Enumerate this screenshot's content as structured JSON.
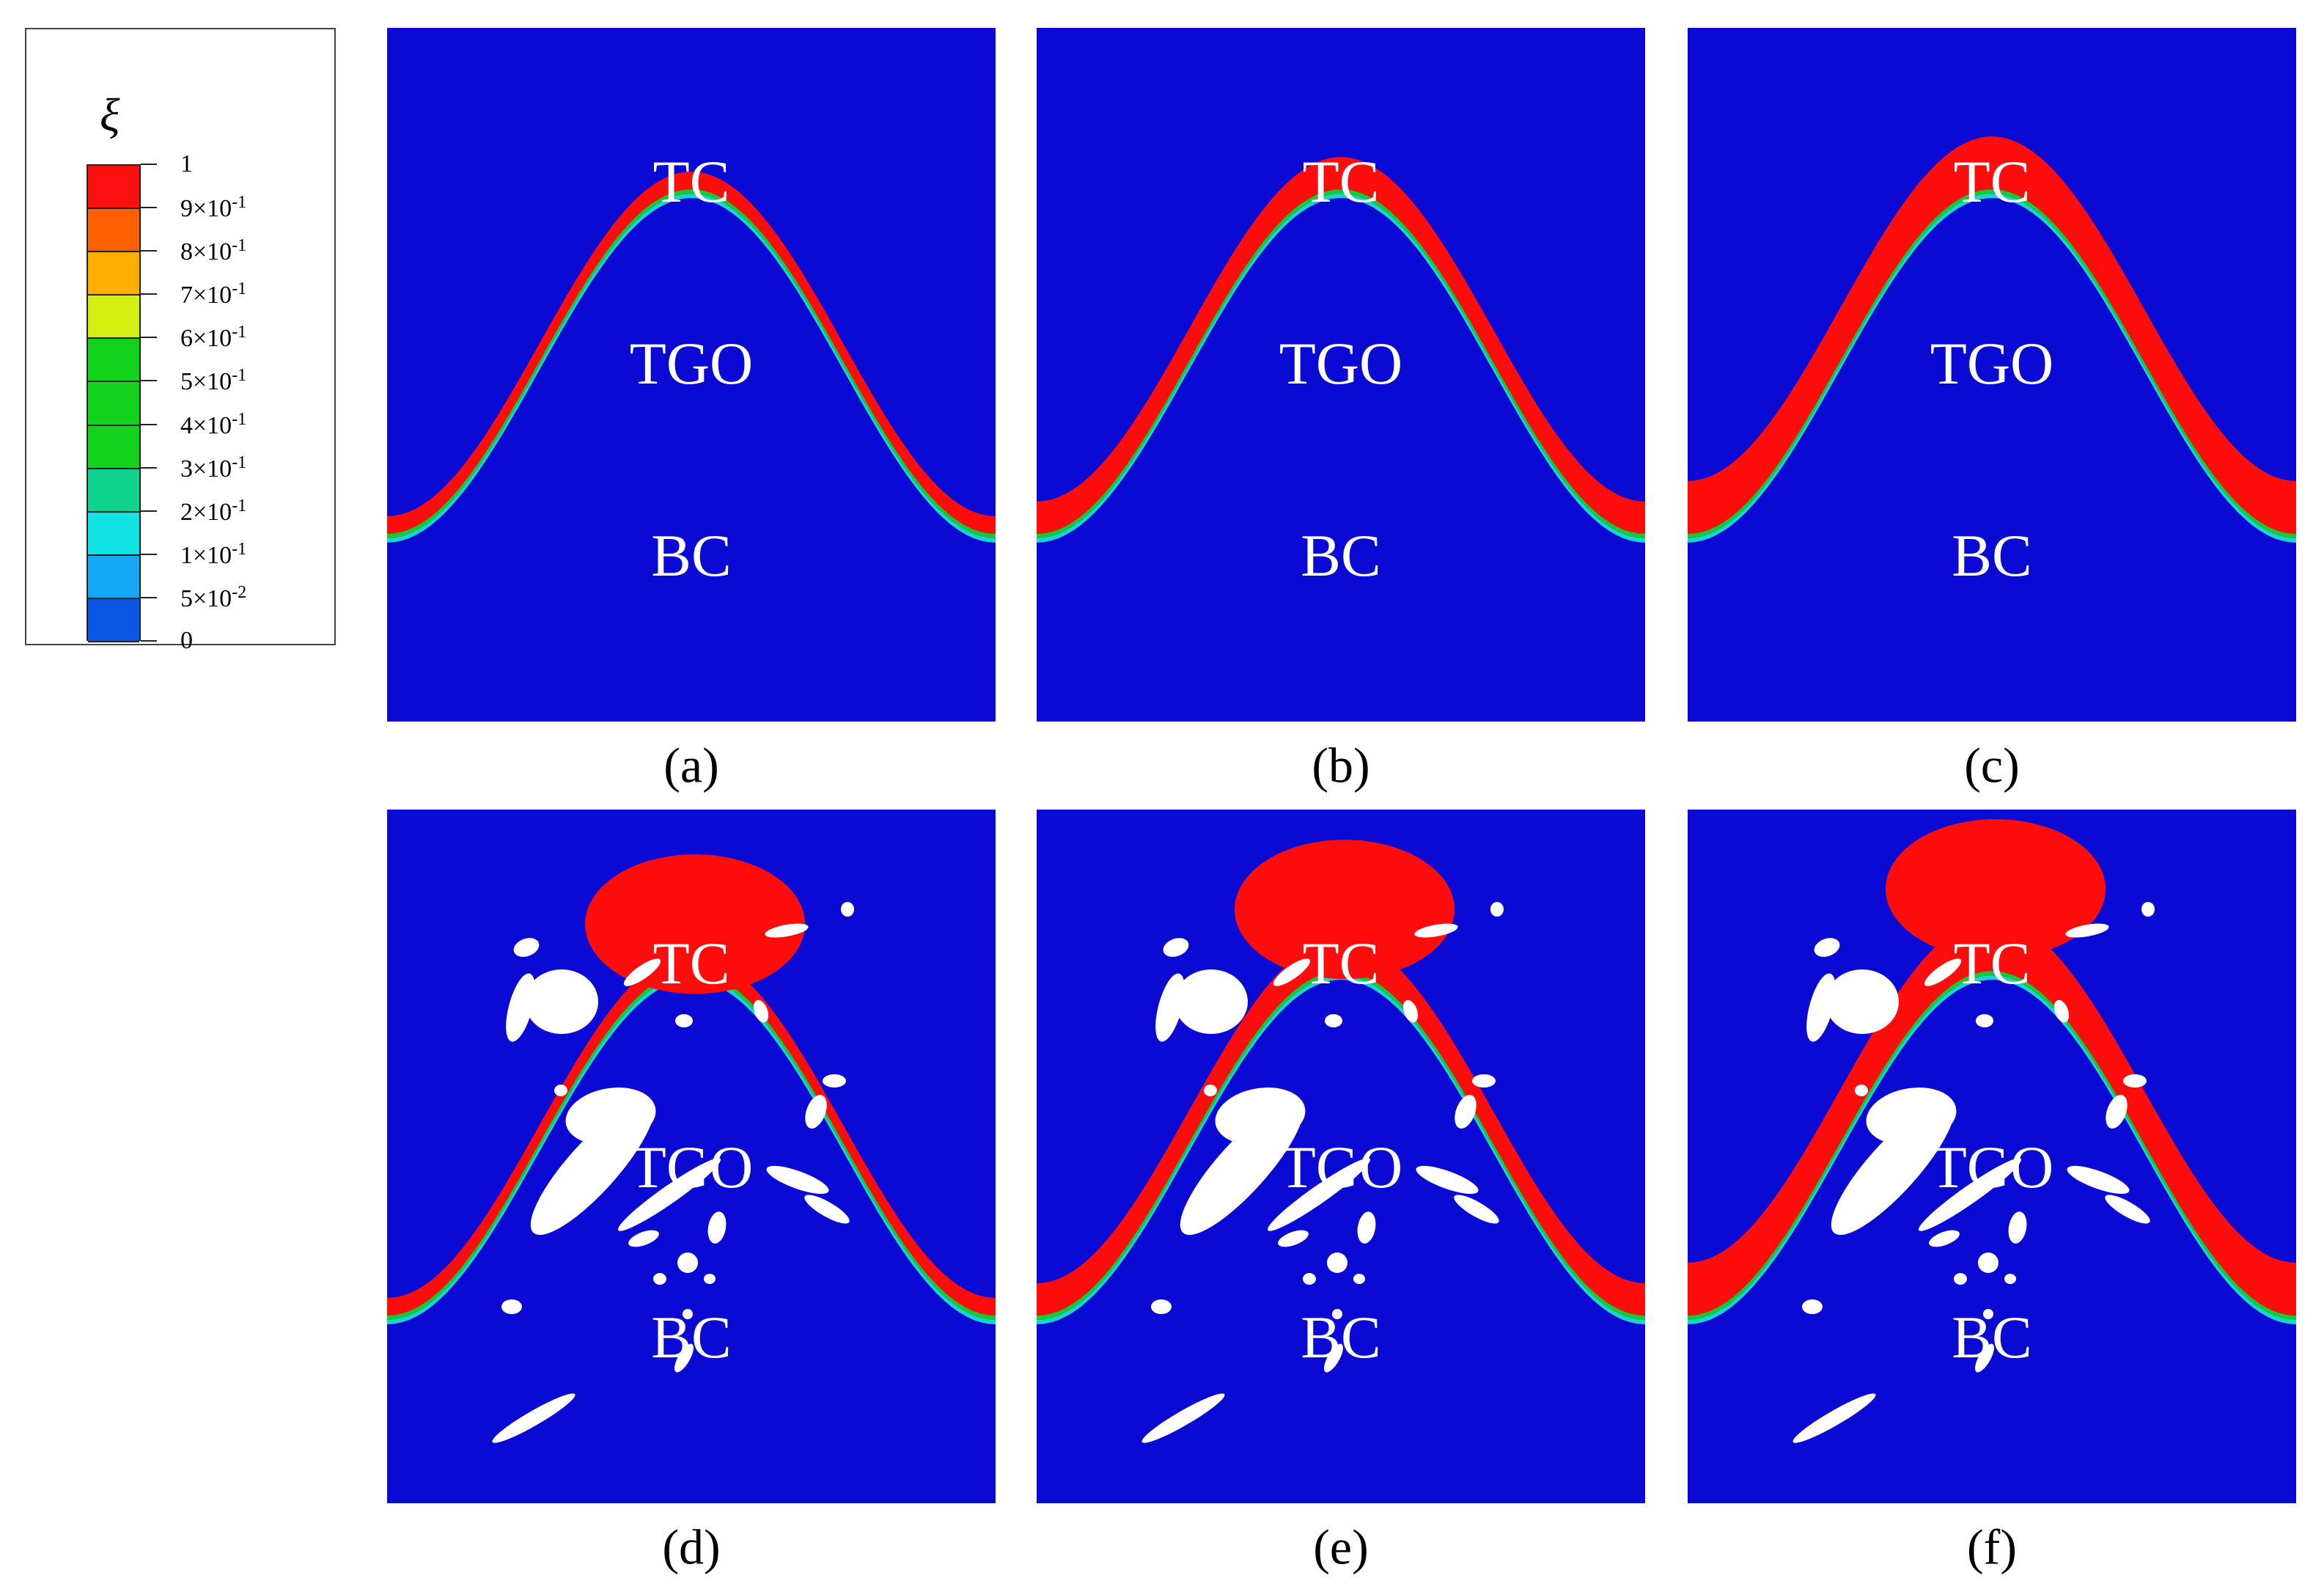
{
  "legend": {
    "symbol": "ξ",
    "colors": [
      "#0b56e6",
      "#15a8f5",
      "#12e4e6",
      "#0fd28e",
      "#12d21c",
      "#12d21c",
      "#12d21c",
      "#d4ef12",
      "#ffae00",
      "#ff5f00",
      "#ff1010"
    ],
    "labels": [
      {
        "mantissa": "1",
        "exponent": ""
      },
      {
        "mantissa": "9×10",
        "exponent": "-1"
      },
      {
        "mantissa": "8×10",
        "exponent": "-1"
      },
      {
        "mantissa": "7×10",
        "exponent": "-1"
      },
      {
        "mantissa": "6×10",
        "exponent": "-1"
      },
      {
        "mantissa": "5×10",
        "exponent": "-1"
      },
      {
        "mantissa": "4×10",
        "exponent": "-1"
      },
      {
        "mantissa": "3×10",
        "exponent": "-1"
      },
      {
        "mantissa": "2×10",
        "exponent": "-1"
      },
      {
        "mantissa": "1×10",
        "exponent": "-1"
      },
      {
        "mantissa": "5×10",
        "exponent": "-2"
      },
      {
        "mantissa": "0",
        "exponent": ""
      }
    ]
  },
  "colors": {
    "background": "#0a0ad4",
    "tgo": "#ff0d0d",
    "interface_green": "#19c832",
    "interface_cyan": "#17d6cf",
    "crack": "#ffffff"
  },
  "panels": [
    {
      "caption": "(a)",
      "top_label": "TC",
      "mid_label": "TGO",
      "bottom_label": "BC",
      "tgo_thickness": "thin",
      "cracks": false
    },
    {
      "caption": "(b)",
      "top_label": "TC",
      "mid_label": "TGO",
      "bottom_label": "BC",
      "tgo_thickness": "medium",
      "cracks": false
    },
    {
      "caption": "(c)",
      "top_label": "TC",
      "mid_label": "TGO",
      "bottom_label": "BC",
      "tgo_thickness": "thick",
      "cracks": false
    },
    {
      "caption": "(d)",
      "top_label": "TC",
      "mid_label": "TGO",
      "bottom_label": "BC",
      "tgo_thickness": "thin",
      "cracks": true
    },
    {
      "caption": "(e)",
      "top_label": "TC",
      "mid_label": "TGO",
      "bottom_label": "BC",
      "tgo_thickness": "medium",
      "cracks": true
    },
    {
      "caption": "(f)",
      "top_label": "TC",
      "mid_label": "TGO",
      "bottom_label": "BC",
      "tgo_thickness": "thick",
      "cracks": true
    }
  ]
}
